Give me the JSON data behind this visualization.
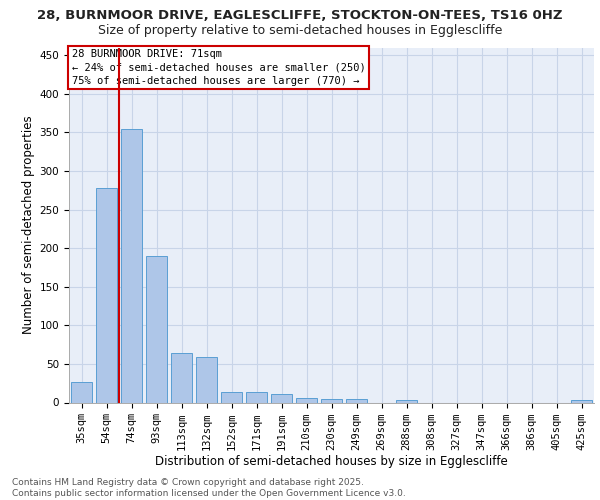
{
  "title_line1": "28, BURNMOOR DRIVE, EAGLESCLIFFE, STOCKTON-ON-TEES, TS16 0HZ",
  "title_line2": "Size of property relative to semi-detached houses in Egglescliffe",
  "xlabel": "Distribution of semi-detached houses by size in Egglescliffe",
  "ylabel": "Number of semi-detached properties",
  "categories": [
    "35sqm",
    "54sqm",
    "74sqm",
    "93sqm",
    "113sqm",
    "132sqm",
    "152sqm",
    "171sqm",
    "191sqm",
    "210sqm",
    "230sqm",
    "249sqm",
    "269sqm",
    "288sqm",
    "308sqm",
    "327sqm",
    "347sqm",
    "366sqm",
    "386sqm",
    "405sqm",
    "425sqm"
  ],
  "values": [
    27,
    278,
    355,
    190,
    64,
    59,
    14,
    14,
    11,
    6,
    5,
    5,
    0,
    3,
    0,
    0,
    0,
    0,
    0,
    0,
    3
  ],
  "bar_color": "#aec6e8",
  "bar_edge_color": "#5a9fd4",
  "marker_label": "28 BURNMOOR DRIVE: 71sqm",
  "pct_smaller_label": "← 24% of semi-detached houses are smaller (250)",
  "pct_larger_label": "75% of semi-detached houses are larger (770) →",
  "vline_color": "#cc0000",
  "annotation_box_color": "#cc0000",
  "vline_x": 1.5,
  "ylim": [
    0,
    460
  ],
  "yticks": [
    0,
    50,
    100,
    150,
    200,
    250,
    300,
    350,
    400,
    450
  ],
  "grid_color": "#c8d4e8",
  "background_color": "#e8eef8",
  "footer": "Contains HM Land Registry data © Crown copyright and database right 2025.\nContains public sector information licensed under the Open Government Licence v3.0.",
  "title_fontsize": 9.5,
  "subtitle_fontsize": 9,
  "axis_label_fontsize": 8.5,
  "tick_fontsize": 7.5,
  "annotation_fontsize": 7.5,
  "footer_fontsize": 6.5
}
